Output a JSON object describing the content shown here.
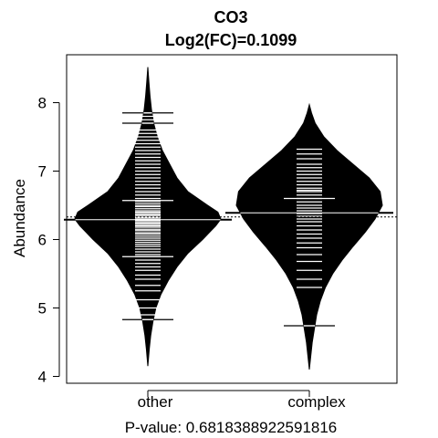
{
  "chart_data": {
    "type": "beanplot",
    "title": "CO3",
    "subtitle": "Log2(FC)=0.1099",
    "ylabel": "Abundance",
    "xlabel": "",
    "footer": "P-value: 0.6818388922591816",
    "ylim": [
      3.9,
      8.7
    ],
    "yticks": [
      4,
      5,
      6,
      7,
      8
    ],
    "overall_mean": 6.33,
    "categories": [
      "other",
      "complex"
    ],
    "beans": [
      {
        "name": "other",
        "mean": 6.29,
        "min": 4.15,
        "max": 8.52,
        "density": [
          [
            4.15,
            0.0
          ],
          [
            4.4,
            0.02
          ],
          [
            4.6,
            0.04
          ],
          [
            4.8,
            0.07
          ],
          [
            5.0,
            0.11
          ],
          [
            5.2,
            0.18
          ],
          [
            5.4,
            0.28
          ],
          [
            5.6,
            0.4
          ],
          [
            5.8,
            0.55
          ],
          [
            6.0,
            0.75
          ],
          [
            6.2,
            0.93
          ],
          [
            6.3,
            1.0
          ],
          [
            6.4,
            0.96
          ],
          [
            6.5,
            0.82
          ],
          [
            6.7,
            0.55
          ],
          [
            6.9,
            0.4
          ],
          [
            7.1,
            0.3
          ],
          [
            7.3,
            0.2
          ],
          [
            7.5,
            0.13
          ],
          [
            7.7,
            0.08
          ],
          [
            7.9,
            0.05
          ],
          [
            8.1,
            0.03
          ],
          [
            8.3,
            0.015
          ],
          [
            8.52,
            0.0
          ]
        ],
        "observations": [
          4.83,
          4.9,
          5.0,
          5.12,
          5.25,
          5.33,
          5.42,
          5.48,
          5.55,
          5.6,
          5.65,
          5.7,
          5.75,
          5.78,
          5.82,
          5.86,
          5.9,
          5.93,
          5.96,
          5.99,
          6.02,
          6.05,
          6.08,
          6.1,
          6.13,
          6.15,
          6.18,
          6.2,
          6.22,
          6.24,
          6.26,
          6.28,
          6.3,
          6.32,
          6.34,
          6.36,
          6.38,
          6.4,
          6.42,
          6.45,
          6.48,
          6.5,
          6.53,
          6.56,
          6.6,
          6.65,
          6.7,
          6.75,
          6.8,
          6.85,
          6.9,
          6.95,
          7.0,
          7.05,
          7.1,
          7.15,
          7.2,
          7.25,
          7.3,
          7.35,
          7.4,
          7.45,
          7.5,
          7.55,
          7.6,
          7.7,
          7.75,
          7.8,
          7.85
        ],
        "wide_marks": [
          4.83,
          5.75,
          6.57,
          7.7,
          7.85
        ]
      },
      {
        "name": "complex",
        "mean": 6.39,
        "min": 4.1,
        "max": 7.97,
        "density": [
          [
            4.1,
            0.0
          ],
          [
            4.3,
            0.02
          ],
          [
            4.5,
            0.04
          ],
          [
            4.7,
            0.07
          ],
          [
            4.9,
            0.1
          ],
          [
            5.1,
            0.15
          ],
          [
            5.3,
            0.22
          ],
          [
            5.5,
            0.32
          ],
          [
            5.7,
            0.45
          ],
          [
            5.9,
            0.6
          ],
          [
            6.1,
            0.76
          ],
          [
            6.3,
            0.9
          ],
          [
            6.5,
            1.0
          ],
          [
            6.7,
            0.97
          ],
          [
            6.9,
            0.82
          ],
          [
            7.1,
            0.6
          ],
          [
            7.3,
            0.38
          ],
          [
            7.5,
            0.2
          ],
          [
            7.7,
            0.08
          ],
          [
            7.85,
            0.03
          ],
          [
            7.97,
            0.0
          ]
        ],
        "observations": [
          4.74,
          5.3,
          5.42,
          5.55,
          5.68,
          5.78,
          5.88,
          5.95,
          6.02,
          6.08,
          6.14,
          6.2,
          6.26,
          6.3,
          6.34,
          6.38,
          6.42,
          6.46,
          6.5,
          6.55,
          6.6,
          6.65,
          6.7,
          6.72,
          6.75,
          6.8,
          6.85,
          6.9,
          6.95,
          7.0,
          7.05,
          7.1,
          7.18,
          7.25,
          7.32
        ],
        "wide_marks": [
          4.74,
          6.6
        ]
      }
    ]
  }
}
